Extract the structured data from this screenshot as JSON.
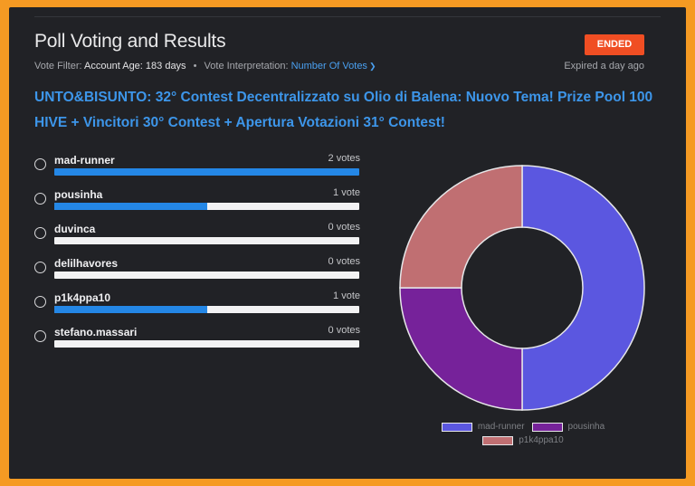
{
  "header": {
    "title": "Poll Voting and Results",
    "status_badge": "ENDED",
    "expired_text": "Expired a day ago",
    "vote_filter_label": "Vote Filter:",
    "vote_filter_value": "Account Age: 183 days",
    "separator": "•",
    "interpretation_label": "Vote Interpretation:",
    "interpretation_value": "Number Of Votes",
    "dropdown_icon": "chevron-down-icon"
  },
  "question": "UNTO&BISUNTO: 32° Contest Decentralizzato su Olio di Balena: Nuovo Tema! Prize Pool 100 HIVE + Vincitori 30° Contest + Apertura Votazioni 31° Contest!",
  "options": [
    {
      "name": "mad-runner",
      "votes_text": "2 votes",
      "votes": 2,
      "fraction": 1.0
    },
    {
      "name": "pousinha",
      "votes_text": "1 vote",
      "votes": 1,
      "fraction": 0.5
    },
    {
      "name": "duvinca",
      "votes_text": "0 votes",
      "votes": 0,
      "fraction": 0.0
    },
    {
      "name": "delilhavores",
      "votes_text": "0 votes",
      "votes": 0,
      "fraction": 0.0
    },
    {
      "name": "p1k4ppa10",
      "votes_text": "1 vote",
      "votes": 1,
      "fraction": 0.5
    },
    {
      "name": "stefano.massari",
      "votes_text": "0 votes",
      "votes": 0,
      "fraction": 0.0
    }
  ],
  "colors": {
    "accent": "#2487e6",
    "badge": "#f04e23",
    "frame": "#f59a23"
  },
  "chart_data": {
    "type": "pie",
    "donut": true,
    "categories": [
      "mad-runner",
      "pousinha",
      "p1k4ppa10"
    ],
    "values": [
      2,
      1,
      1
    ],
    "colors": [
      "#5b57e0",
      "#76229a",
      "#c06f72"
    ],
    "legend_position": "bottom"
  }
}
